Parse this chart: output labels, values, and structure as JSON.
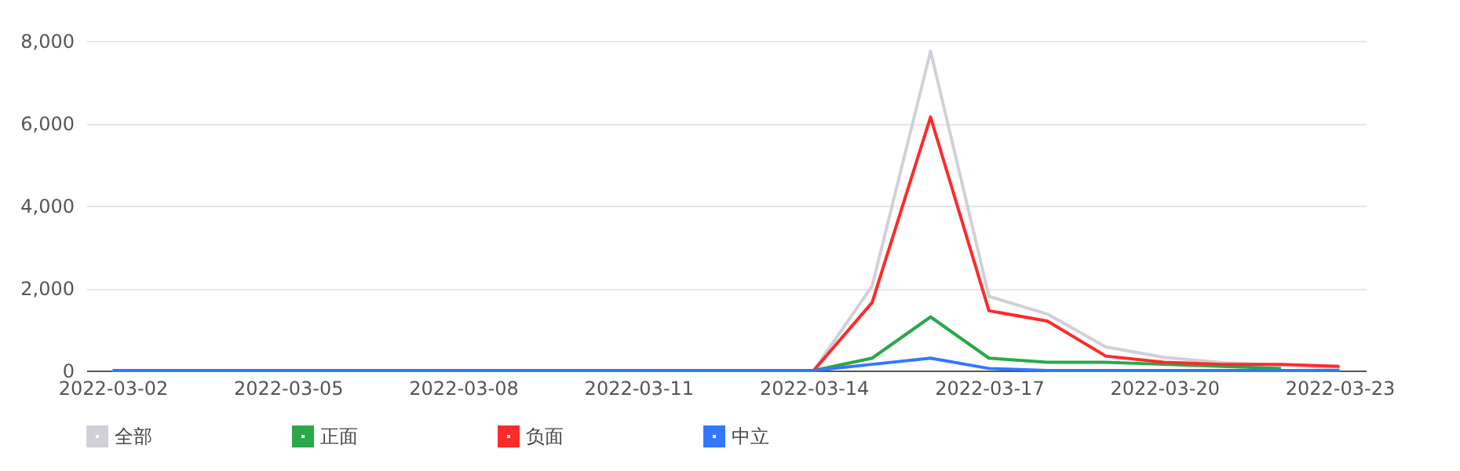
{
  "chart_data": {
    "type": "line",
    "categories": [
      "2022-03-02",
      null,
      null,
      "2022-03-05",
      null,
      null,
      "2022-03-08",
      null,
      null,
      "2022-03-11",
      null,
      null,
      "2022-03-14",
      null,
      null,
      "2022-03-17",
      null,
      null,
      "2022-03-20",
      null,
      null,
      "2022-03-23"
    ],
    "series": [
      {
        "name": "全部",
        "color": "#d0d0d8",
        "values": [
          0,
          0,
          0,
          0,
          0,
          0,
          0,
          0,
          0,
          0,
          0,
          0,
          0,
          2050,
          7750,
          1800,
          1370,
          570,
          320,
          190,
          130,
          60
        ]
      },
      {
        "name": "正面",
        "color": "#2ba84a",
        "values": [
          null,
          null,
          null,
          null,
          null,
          null,
          null,
          null,
          null,
          null,
          null,
          null,
          0,
          300,
          1300,
          300,
          200,
          200,
          150,
          100,
          50,
          null
        ]
      },
      {
        "name": "负面",
        "color": "#ff2a2a",
        "values": [
          null,
          null,
          null,
          null,
          null,
          null,
          null,
          null,
          null,
          null,
          null,
          null,
          0,
          1650,
          6150,
          1450,
          1200,
          350,
          200,
          150,
          150,
          100
        ]
      },
      {
        "name": "中立",
        "color": "#3377ff",
        "values": [
          0,
          0,
          0,
          0,
          0,
          0,
          0,
          0,
          0,
          0,
          0,
          0,
          0,
          150,
          300,
          50,
          0,
          0,
          0,
          0,
          0,
          0
        ]
      }
    ],
    "ylim": [
      0,
      8000
    ],
    "yticks": [
      0,
      {
        "value": 2000,
        "label": "2,000"
      },
      {
        "value": 4000,
        "label": "4,000"
      },
      {
        "value": 6000,
        "label": "6,000"
      },
      {
        "value": 8000,
        "label": "8,000"
      }
    ],
    "grid": "y",
    "legend": "bottom",
    "marker": "none",
    "line_style": "solid"
  }
}
